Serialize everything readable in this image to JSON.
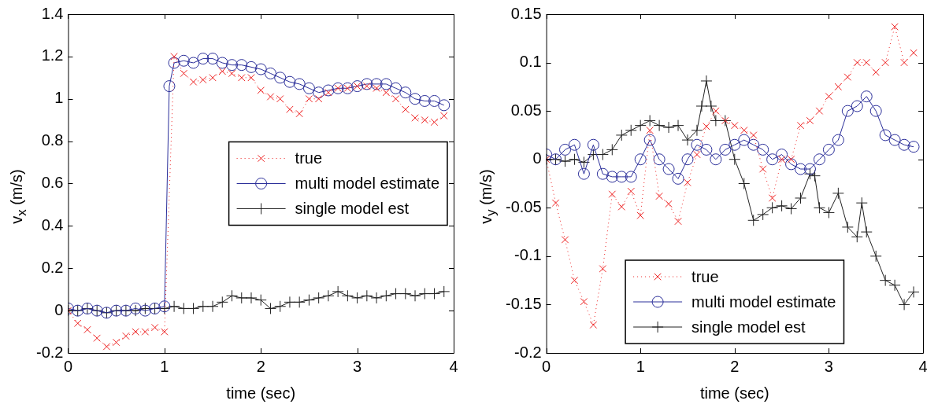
{
  "chart_data": [
    {
      "type": "line",
      "xlabel": "time (sec)",
      "ylabel": "v$_{x}$ (m/s)",
      "xlim": [
        0,
        4
      ],
      "xticks": [
        0,
        1,
        2,
        3,
        4
      ],
      "ylim": [
        -0.2,
        1.4
      ],
      "yticks": [
        -0.2,
        0,
        0.2,
        0.4,
        0.6,
        0.8,
        1,
        1.2,
        1.4
      ],
      "grid": false,
      "legend": "right",
      "series": [
        {
          "name": "true",
          "color": "#ee2222",
          "marker": "cross",
          "line_style": "dotted",
          "x": [
            0,
            0.1,
            0.2,
            0.3,
            0.4,
            0.5,
            0.6,
            0.7,
            0.8,
            0.9,
            1.0,
            1.1,
            1.2,
            1.3,
            1.4,
            1.5,
            1.6,
            1.7,
            1.8,
            1.9,
            2.0,
            2.1,
            2.2,
            2.3,
            2.4,
            2.5,
            2.6,
            2.7,
            2.8,
            2.9,
            3.0,
            3.1,
            3.2,
            3.3,
            3.4,
            3.5,
            3.6,
            3.7,
            3.8,
            3.9
          ],
          "values": [
            0,
            -0.06,
            -0.09,
            -0.13,
            -0.17,
            -0.15,
            -0.12,
            -0.1,
            -0.1,
            -0.08,
            -0.1,
            1.2,
            1.12,
            1.08,
            1.09,
            1.1,
            1.13,
            1.12,
            1.1,
            1.1,
            1.04,
            1.01,
            1.0,
            0.95,
            0.93,
            1.0,
            1.0,
            1.03,
            1.05,
            1.05,
            1.06,
            1.06,
            1.05,
            1.03,
            1.0,
            0.95,
            0.91,
            0.9,
            0.89,
            0.92
          ]
        },
        {
          "name": "multi model estimate",
          "color": "#2b2f9a",
          "marker": "circle",
          "line_style": "solid",
          "x": [
            0,
            0.1,
            0.2,
            0.3,
            0.4,
            0.5,
            0.6,
            0.7,
            0.8,
            0.9,
            1.0,
            1.05,
            1.1,
            1.2,
            1.3,
            1.4,
            1.5,
            1.6,
            1.7,
            1.8,
            1.9,
            2.0,
            2.1,
            2.2,
            2.3,
            2.4,
            2.5,
            2.6,
            2.7,
            2.8,
            2.9,
            3.0,
            3.1,
            3.2,
            3.3,
            3.4,
            3.5,
            3.6,
            3.7,
            3.8,
            3.9
          ],
          "values": [
            0.01,
            0,
            0.01,
            0,
            -0.01,
            0,
            0,
            0.01,
            0,
            0.01,
            0.02,
            1.06,
            1.17,
            1.18,
            1.17,
            1.19,
            1.19,
            1.17,
            1.16,
            1.16,
            1.15,
            1.14,
            1.12,
            1.1,
            1.08,
            1.07,
            1.05,
            1.03,
            1.04,
            1.05,
            1.05,
            1.06,
            1.07,
            1.07,
            1.07,
            1.05,
            1.03,
            1.0,
            0.99,
            0.99,
            0.97
          ]
        },
        {
          "name": "single model est",
          "color": "#222222",
          "marker": "plus",
          "line_style": "solid",
          "x": [
            0,
            0.1,
            0.2,
            0.3,
            0.4,
            0.5,
            0.6,
            0.7,
            0.8,
            0.9,
            1.0,
            1.1,
            1.2,
            1.3,
            1.4,
            1.5,
            1.6,
            1.7,
            1.8,
            1.9,
            2.0,
            2.1,
            2.2,
            2.3,
            2.4,
            2.5,
            2.6,
            2.7,
            2.8,
            2.9,
            3.0,
            3.1,
            3.2,
            3.3,
            3.4,
            3.5,
            3.6,
            3.7,
            3.8,
            3.9
          ],
          "values": [
            0,
            0,
            0.01,
            0,
            -0.01,
            0,
            0,
            0,
            0.01,
            0.01,
            0.01,
            0.02,
            0.01,
            0.01,
            0.02,
            0.02,
            0.04,
            0.07,
            0.06,
            0.06,
            0.05,
            0.01,
            0.02,
            0.04,
            0.04,
            0.05,
            0.06,
            0.07,
            0.09,
            0.07,
            0.06,
            0.07,
            0.06,
            0.07,
            0.08,
            0.08,
            0.07,
            0.08,
            0.08,
            0.09
          ]
        }
      ]
    },
    {
      "type": "line",
      "xlabel": "time (sec)",
      "ylabel": "v$_{y}$ (m/s)",
      "xlim": [
        0,
        4
      ],
      "xticks": [
        0,
        1,
        2,
        3,
        4
      ],
      "ylim": [
        -0.2,
        0.15
      ],
      "yticks": [
        -0.2,
        -0.15,
        -0.1,
        -0.05,
        0,
        0.05,
        0.1,
        0.15
      ],
      "grid": false,
      "legend": "bottom",
      "series": [
        {
          "name": "true",
          "color": "#ee2222",
          "marker": "cross",
          "line_style": "dotted",
          "x": [
            0,
            0.1,
            0.2,
            0.3,
            0.4,
            0.5,
            0.6,
            0.7,
            0.8,
            0.9,
            1.0,
            1.1,
            1.2,
            1.3,
            1.4,
            1.5,
            1.6,
            1.7,
            1.8,
            1.9,
            2.0,
            2.1,
            2.2,
            2.3,
            2.4,
            2.5,
            2.6,
            2.7,
            2.8,
            2.9,
            3.0,
            3.1,
            3.2,
            3.3,
            3.4,
            3.5,
            3.6,
            3.7,
            3.8,
            3.9
          ],
          "values": [
            0,
            -0.045,
            -0.083,
            -0.125,
            -0.147,
            -0.171,
            -0.113,
            -0.036,
            -0.049,
            -0.033,
            -0.058,
            0.03,
            -0.038,
            -0.046,
            -0.064,
            -0.024,
            0.005,
            0.034,
            0.05,
            0.04,
            0.035,
            0.03,
            0.025,
            -0.01,
            -0.04,
            0,
            0,
            0.035,
            0.04,
            0.05,
            0.065,
            0.075,
            0.085,
            0.1,
            0.1,
            0.09,
            0.1,
            0.137,
            0.1,
            0.11
          ]
        },
        {
          "name": "multi model estimate",
          "color": "#2b2f9a",
          "marker": "circle",
          "line_style": "solid",
          "x": [
            0,
            0.1,
            0.2,
            0.3,
            0.4,
            0.5,
            0.6,
            0.7,
            0.8,
            0.9,
            1.0,
            1.1,
            1.2,
            1.3,
            1.4,
            1.5,
            1.6,
            1.7,
            1.8,
            1.9,
            2.0,
            2.1,
            2.2,
            2.3,
            2.4,
            2.5,
            2.6,
            2.7,
            2.8,
            2.9,
            3.0,
            3.1,
            3.2,
            3.3,
            3.4,
            3.5,
            3.6,
            3.7,
            3.8,
            3.9
          ],
          "values": [
            0.005,
            0,
            0.01,
            0.015,
            -0.015,
            0.015,
            -0.015,
            -0.018,
            -0.018,
            -0.018,
            0,
            0.02,
            0,
            -0.01,
            -0.02,
            0,
            0.015,
            0.01,
            0,
            0.01,
            0.015,
            0.02,
            0.015,
            0.01,
            0,
            0.005,
            -0.005,
            -0.01,
            -0.01,
            0,
            0.01,
            0.02,
            0.05,
            0.055,
            0.065,
            0.05,
            0.025,
            0.02,
            0.015,
            0.013
          ]
        },
        {
          "name": "single model est",
          "color": "#222222",
          "marker": "plus",
          "line_style": "solid",
          "x": [
            0,
            0.1,
            0.2,
            0.3,
            0.4,
            0.5,
            0.6,
            0.7,
            0.8,
            0.9,
            1.0,
            1.1,
            1.2,
            1.3,
            1.4,
            1.5,
            1.6,
            1.65,
            1.7,
            1.75,
            1.8,
            1.9,
            2.0,
            2.1,
            2.2,
            2.3,
            2.4,
            2.5,
            2.6,
            2.7,
            2.8,
            2.85,
            2.9,
            3.0,
            3.1,
            3.2,
            3.3,
            3.35,
            3.4,
            3.5,
            3.6,
            3.7,
            3.8,
            3.9
          ],
          "values": [
            0,
            0,
            -0.002,
            0,
            -0.003,
            0.005,
            0.005,
            0.01,
            0.025,
            0.03,
            0.035,
            0.04,
            0.035,
            0.033,
            0.035,
            0.02,
            0.03,
            0.055,
            0.081,
            0.055,
            0.04,
            0.04,
            0,
            -0.025,
            -0.063,
            -0.057,
            -0.05,
            -0.048,
            -0.051,
            -0.04,
            -0.015,
            -0.017,
            -0.05,
            -0.055,
            -0.035,
            -0.07,
            -0.08,
            -0.045,
            -0.075,
            -0.1,
            -0.125,
            -0.13,
            -0.15,
            -0.137
          ]
        }
      ]
    }
  ]
}
